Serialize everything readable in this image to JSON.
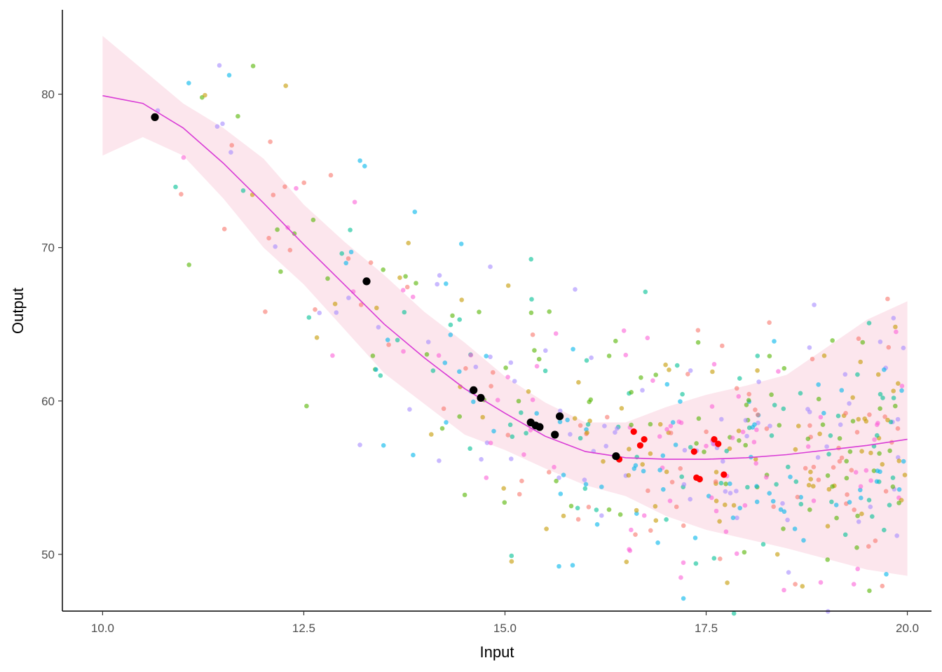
{
  "chart_data": {
    "type": "scatter",
    "title": "",
    "xlabel": "Input",
    "ylabel": "Output",
    "xlim": [
      9.5,
      20.3
    ],
    "ylim": [
      46.3,
      85.5
    ],
    "x_ticks": [
      10.0,
      12.5,
      15.0,
      17.5,
      20.0
    ],
    "x_tick_labels": [
      "10.0",
      "12.5",
      "15.0",
      "17.5",
      "20.0"
    ],
    "y_ticks": [
      50,
      60,
      70,
      80
    ],
    "y_tick_labels": [
      "50",
      "60",
      "70",
      "80"
    ],
    "grid": false,
    "legend": "none",
    "colors": {
      "axis": "#000000",
      "smooth_line": "#D93BD6",
      "ribbon": "#F9C8D6",
      "highlight_black": "#000000",
      "highlight_red": "#FF0000",
      "palette": [
        "#F8766D",
        "#C49A00",
        "#53B400",
        "#00C094",
        "#00B6EB",
        "#A58AFF",
        "#FB61D7"
      ]
    },
    "smooth": {
      "x": [
        10.0,
        10.5,
        11.0,
        11.5,
        12.0,
        12.5,
        13.0,
        13.5,
        14.0,
        14.5,
        15.0,
        15.5,
        16.0,
        16.5,
        17.0,
        17.5,
        18.0,
        18.5,
        19.0,
        19.5,
        20.0
      ],
      "y": [
        79.9,
        79.4,
        77.8,
        75.5,
        72.9,
        70.2,
        67.6,
        65.0,
        62.8,
        60.8,
        59.2,
        57.7,
        56.7,
        56.3,
        56.2,
        56.2,
        56.3,
        56.5,
        56.8,
        57.1,
        57.5
      ],
      "lower": [
        76.0,
        77.2,
        76.0,
        73.2,
        70.0,
        67.6,
        64.7,
        61.8,
        59.8,
        57.8,
        56.8,
        55.6,
        54.5,
        53.8,
        52.5,
        51.6,
        51.0,
        50.4,
        49.7,
        49.0,
        48.6
      ],
      "upper": [
        83.8,
        81.6,
        79.4,
        77.8,
        75.8,
        72.8,
        70.4,
        68.2,
        65.8,
        63.8,
        61.6,
        59.9,
        58.6,
        58.6,
        59.6,
        60.4,
        61.0,
        61.7,
        63.5,
        65.3,
        66.5
      ]
    },
    "highlight_black": [
      {
        "x": 10.65,
        "y": 78.5
      },
      {
        "x": 13.28,
        "y": 67.8
      },
      {
        "x": 14.61,
        "y": 60.7
      },
      {
        "x": 14.7,
        "y": 60.2
      },
      {
        "x": 15.32,
        "y": 58.6
      },
      {
        "x": 15.38,
        "y": 58.4
      },
      {
        "x": 15.43,
        "y": 58.3
      },
      {
        "x": 15.62,
        "y": 57.8
      },
      {
        "x": 15.68,
        "y": 59.0
      },
      {
        "x": 16.38,
        "y": 56.4
      }
    ],
    "highlight_red": [
      {
        "x": 16.42,
        "y": 56.2
      },
      {
        "x": 16.6,
        "y": 58.0
      },
      {
        "x": 16.68,
        "y": 57.1
      },
      {
        "x": 16.73,
        "y": 57.5
      },
      {
        "x": 17.35,
        "y": 56.7
      },
      {
        "x": 17.38,
        "y": 55.0
      },
      {
        "x": 17.42,
        "y": 54.9
      },
      {
        "x": 17.6,
        "y": 57.5
      },
      {
        "x": 17.65,
        "y": 57.2
      },
      {
        "x": 17.72,
        "y": 55.2
      }
    ]
  }
}
